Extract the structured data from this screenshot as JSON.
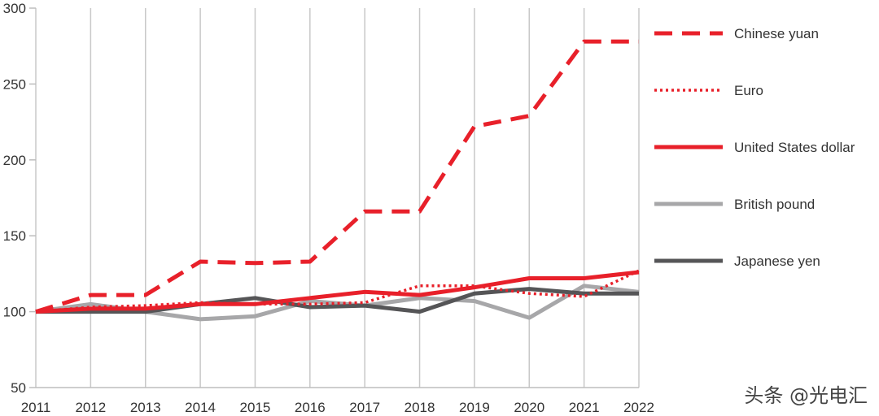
{
  "chart_data": {
    "type": "line",
    "title": "",
    "xlabel": "",
    "ylabel": "",
    "x": [
      "2011",
      "2012",
      "2013",
      "2014",
      "2015",
      "2016",
      "2017",
      "2018",
      "2019",
      "2020",
      "2021",
      "2022"
    ],
    "ylim": [
      50,
      300
    ],
    "yticks": [
      50,
      100,
      150,
      200,
      250,
      300
    ],
    "grid": "vertical",
    "legend_position": "right",
    "series": [
      {
        "name": "Chinese yuan",
        "style": "dashed",
        "color": "#e8202a",
        "values": [
          100,
          111,
          111,
          133,
          132,
          133,
          166,
          166,
          222,
          229,
          278,
          278
        ]
      },
      {
        "name": "Euro",
        "style": "dotted",
        "color": "#e8202a",
        "values": [
          100,
          103,
          104,
          106,
          105,
          105,
          106,
          117,
          117,
          112,
          110,
          127
        ]
      },
      {
        "name": "United States dollar",
        "style": "solid",
        "color": "#e8202a",
        "values": [
          100,
          102,
          102,
          105,
          105,
          109,
          113,
          111,
          116,
          122,
          122,
          126
        ]
      },
      {
        "name": "British pound",
        "style": "solid",
        "color": "#a7a7a9",
        "values": [
          100,
          105,
          100,
          95,
          97,
          107,
          104,
          109,
          107,
          96,
          117,
          113
        ]
      },
      {
        "name": "Japanese yen",
        "style": "solid",
        "color": "#555557",
        "values": [
          100,
          100,
          100,
          105,
          109,
          103,
          104,
          100,
          112,
          115,
          112,
          112
        ]
      }
    ]
  },
  "watermark": "头条 @光电汇"
}
